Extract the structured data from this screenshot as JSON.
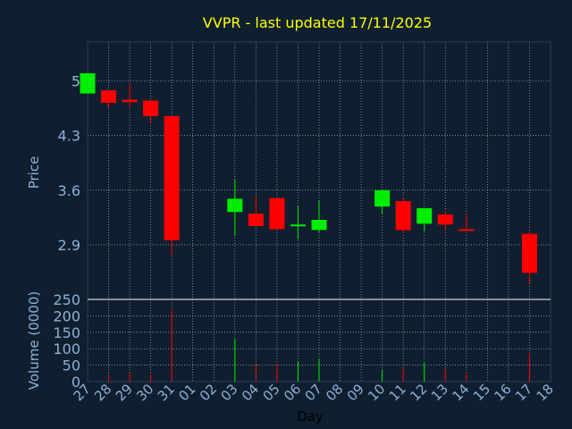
{
  "chart_data": {
    "type": "candlestick",
    "title": "VVPR - last updated 17/11/2025",
    "xlabel": "Day",
    "price_panel": {
      "ylabel": "Price",
      "yticks": [
        "5",
        "4.3",
        "3.6",
        "2.9"
      ],
      "ytick_values": [
        5.0,
        4.3,
        3.6,
        2.9
      ],
      "ylim": [
        2.2,
        5.5
      ],
      "candles": [
        {
          "day": "27",
          "open": 4.84,
          "close": 5.1,
          "high": 5.1,
          "low": 4.84
        },
        {
          "day": "28",
          "open": 4.88,
          "close": 4.72,
          "high": 4.88,
          "low": 4.66
        },
        {
          "day": "29",
          "open": 4.76,
          "close": 4.73,
          "high": 4.97,
          "low": 4.66
        },
        {
          "day": "30",
          "open": 4.75,
          "close": 4.55,
          "high": 4.75,
          "low": 4.46
        },
        {
          "day": "31",
          "open": 4.55,
          "close": 2.96,
          "high": 4.55,
          "low": 2.76
        },
        {
          "day": "03",
          "open": 3.32,
          "close": 3.49,
          "high": 3.74,
          "low": 3.02
        },
        {
          "day": "04",
          "open": 3.3,
          "close": 3.14,
          "high": 3.52,
          "low": 3.14
        },
        {
          "day": "05",
          "open": 3.5,
          "close": 3.1,
          "high": 3.5,
          "low": 3.09
        },
        {
          "day": "06",
          "open": 3.15,
          "close": 3.16,
          "high": 3.4,
          "low": 2.97
        },
        {
          "day": "07",
          "open": 3.09,
          "close": 3.22,
          "high": 3.46,
          "low": 3.06
        },
        {
          "day": "10",
          "open": 3.39,
          "close": 3.6,
          "high": 3.6,
          "low": 3.3
        },
        {
          "day": "11",
          "open": 3.46,
          "close": 3.09,
          "high": 3.5,
          "low": 3.05
        },
        {
          "day": "12",
          "open": 3.17,
          "close": 3.37,
          "high": 3.37,
          "low": 3.07
        },
        {
          "day": "13",
          "open": 3.29,
          "close": 3.16,
          "high": 3.33,
          "low": 3.08
        },
        {
          "day": "14",
          "open": 3.1,
          "close": 3.09,
          "high": 3.28,
          "low": 3.09
        },
        {
          "day": "17",
          "open": 3.04,
          "close": 2.54,
          "high": 3.07,
          "low": 2.4
        }
      ]
    },
    "volume_panel": {
      "ylabel": "Volume (0000)",
      "yticks": [
        "250",
        "200",
        "150",
        "100",
        "50",
        "0"
      ],
      "ytick_values": [
        250,
        200,
        150,
        100,
        50,
        0
      ],
      "ylim": [
        0,
        250
      ],
      "bars": [
        {
          "day": "28",
          "value": 18,
          "dir": "down"
        },
        {
          "day": "29",
          "value": 28,
          "dir": "down"
        },
        {
          "day": "30",
          "value": 22,
          "dir": "down"
        },
        {
          "day": "31",
          "value": 218,
          "dir": "down"
        },
        {
          "day": "03",
          "value": 130,
          "dir": "up"
        },
        {
          "day": "04",
          "value": 52,
          "dir": "down"
        },
        {
          "day": "05",
          "value": 55,
          "dir": "down"
        },
        {
          "day": "06",
          "value": 62,
          "dir": "up"
        },
        {
          "day": "07",
          "value": 70,
          "dir": "up"
        },
        {
          "day": "10",
          "value": 35,
          "dir": "up"
        },
        {
          "day": "11",
          "value": 45,
          "dir": "down"
        },
        {
          "day": "12",
          "value": 58,
          "dir": "up"
        },
        {
          "day": "13",
          "value": 40,
          "dir": "down"
        },
        {
          "day": "14",
          "value": 25,
          "dir": "down"
        },
        {
          "day": "17",
          "value": 88,
          "dir": "down"
        }
      ]
    },
    "x_days": [
      "27",
      "28",
      "29",
      "30",
      "31",
      "01",
      "02",
      "03",
      "04",
      "05",
      "06",
      "07",
      "08",
      "09",
      "10",
      "11",
      "12",
      "13",
      "14",
      "15",
      "16",
      "17",
      "18"
    ],
    "grid": true,
    "colors": {
      "background": "#0f1f30",
      "up": "#00ee00",
      "down": "#ff0000",
      "grid": "#ffffff",
      "title": "#ffff00",
      "axis_text": "#8fb0d6",
      "xlabel": "#000000"
    }
  }
}
